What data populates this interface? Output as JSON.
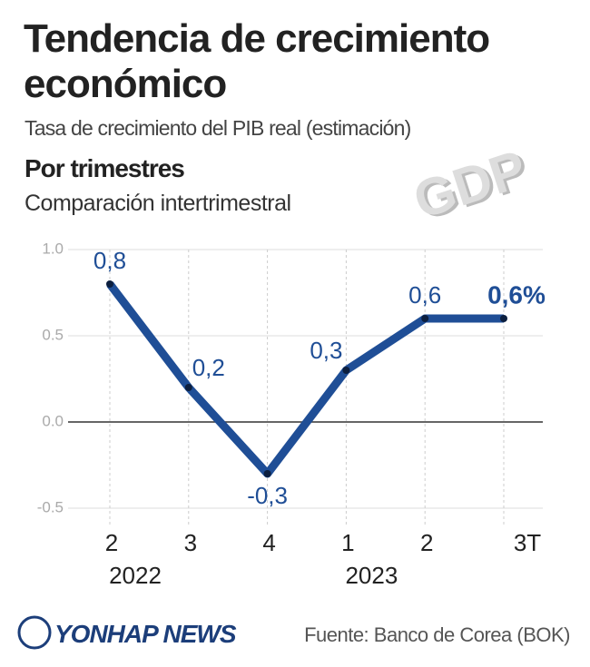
{
  "header": {
    "title": "Tendencia de crecimiento económico",
    "subtitle": "Tasa de crecimiento del PIB real (estimación)",
    "section": "Por trimestres",
    "section_subtitle": "Comparación intertrimestral",
    "illustration_text": "GDP"
  },
  "chart_data": {
    "type": "line",
    "categories": [
      "2",
      "3",
      "4",
      "1",
      "2",
      "3T"
    ],
    "year_labels": [
      "2022",
      null,
      null,
      "2023",
      null,
      null
    ],
    "series": [
      {
        "name": "Crecimiento del PIB real",
        "color": "#1f4e96",
        "values": [
          0.8,
          0.2,
          -0.3,
          0.3,
          0.6,
          0.6
        ],
        "value_labels": [
          "0,8",
          "0,2",
          "-0,3",
          "0,3",
          "0,6",
          "0,6%"
        ]
      }
    ],
    "ylim": [
      -0.5,
      1.0
    ],
    "yticks": [
      {
        "value": 1.0,
        "label": "1.0"
      },
      0.5,
      {
        "value": 0,
        "label": "0.0"
      },
      -0.5
    ],
    "grid": true
  },
  "footer": {
    "logo": "YONHAP NEWS",
    "source": "Fuente: Banco de Corea (BOK)"
  }
}
